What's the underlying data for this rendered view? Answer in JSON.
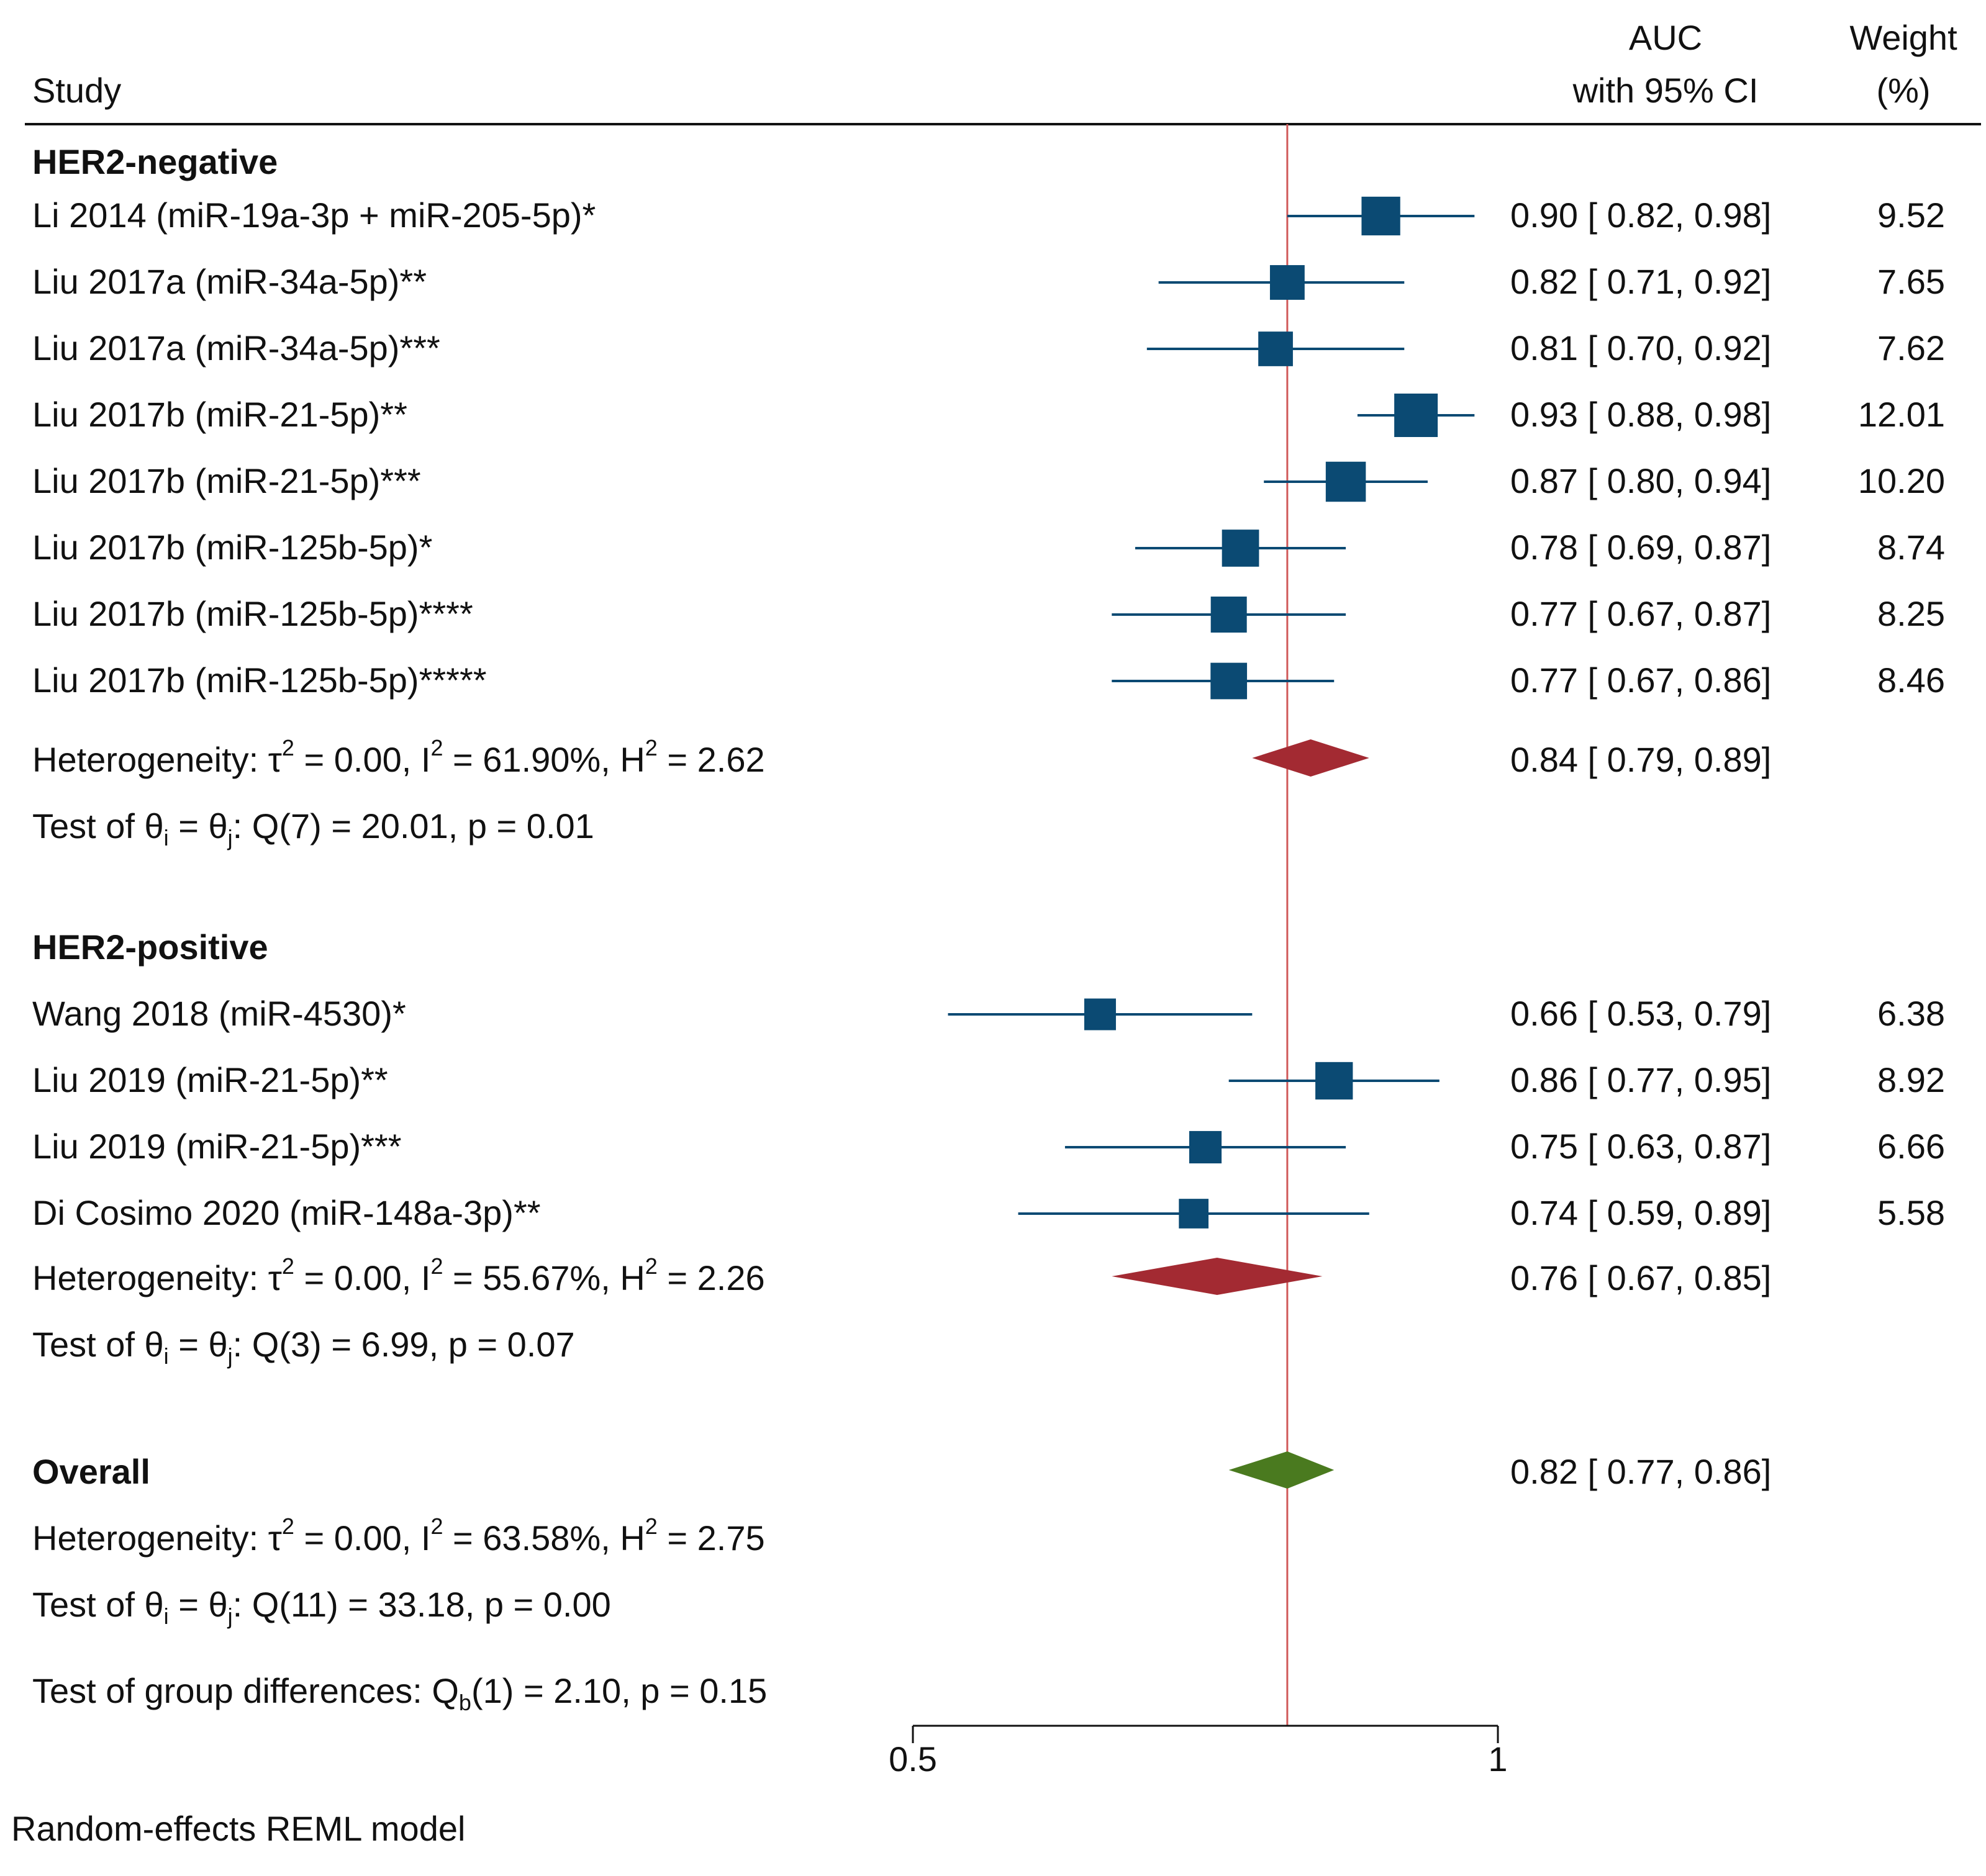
{
  "chart_data": {
    "type": "forest",
    "headers": {
      "study": "Study",
      "auc_line1": "AUC",
      "auc_line2": "with 95% CI",
      "weight_line1": "Weight",
      "weight_line2": "(%)"
    },
    "reference_line": 0.82,
    "xlim": [
      0.5,
      1.0
    ],
    "x_ticks": [
      {
        "value": 0.5,
        "label": "0.5"
      },
      {
        "value": 1.0,
        "label": "1"
      }
    ],
    "groups": [
      {
        "name": "HER2-negative",
        "studies": [
          {
            "label": "Li 2014 (miR-19a-3p + miR-205-5p)*",
            "est": 0.9,
            "lo": 0.82,
            "hi": 0.98,
            "ci_text": "0.90 [ 0.82,  0.98]",
            "weight": "9.52"
          },
          {
            "label": "Liu 2017a (miR-34a-5p)**",
            "est": 0.82,
            "lo": 0.71,
            "hi": 0.92,
            "ci_text": "0.82 [ 0.71,  0.92]",
            "weight": "7.65"
          },
          {
            "label": "Liu 2017a (miR-34a-5p)***",
            "est": 0.81,
            "lo": 0.7,
            "hi": 0.92,
            "ci_text": "0.81 [ 0.70,  0.92]",
            "weight": "7.62"
          },
          {
            "label": "Liu 2017b (miR-21-5p)**",
            "est": 0.93,
            "lo": 0.88,
            "hi": 0.98,
            "ci_text": "0.93 [ 0.88,  0.98]",
            "weight": "12.01"
          },
          {
            "label": "Liu 2017b (miR-21-5p)***",
            "est": 0.87,
            "lo": 0.8,
            "hi": 0.94,
            "ci_text": "0.87 [ 0.80,  0.94]",
            "weight": "10.20"
          },
          {
            "label": "Liu 2017b (miR-125b-5p)*",
            "est": 0.78,
            "lo": 0.69,
            "hi": 0.87,
            "ci_text": "0.78 [ 0.69,  0.87]",
            "weight": "8.74"
          },
          {
            "label": "Liu 2017b (miR-125b-5p)****",
            "est": 0.77,
            "lo": 0.67,
            "hi": 0.87,
            "ci_text": "0.77 [ 0.67,  0.87]",
            "weight": "8.25"
          },
          {
            "label": "Liu 2017b (miR-125b-5p)*****",
            "est": 0.77,
            "lo": 0.67,
            "hi": 0.86,
            "ci_text": "0.77 [ 0.67,  0.86]",
            "weight": "8.46"
          }
        ],
        "pooled": {
          "est": 0.84,
          "lo": 0.79,
          "hi": 0.89,
          "ci_text": "0.84 [ 0.79,  0.89]"
        },
        "heterogeneity": {
          "prefix": "Heterogeneity: τ",
          "tau2": "2",
          "mid1": " = 0.00, I",
          "i2": "2",
          "mid2": " = 61.90%, H",
          "h2": "2",
          "suffix": " = 2.62"
        },
        "test": {
          "prefix": "Test of θ",
          "sub_i": "i",
          "mid": " = θ",
          "sub_j": "j",
          "suffix": ": Q(7) = 20.01, p = 0.01"
        }
      },
      {
        "name": "HER2-positive",
        "studies": [
          {
            "label": "Wang 2018 (miR-4530)*",
            "est": 0.66,
            "lo": 0.53,
            "hi": 0.79,
            "ci_text": "0.66 [ 0.53,  0.79]",
            "weight": "6.38"
          },
          {
            "label": "Liu 2019 (miR-21-5p)**",
            "est": 0.86,
            "lo": 0.77,
            "hi": 0.95,
            "ci_text": "0.86 [ 0.77,  0.95]",
            "weight": "8.92"
          },
          {
            "label": "Liu 2019 (miR-21-5p)***",
            "est": 0.75,
            "lo": 0.63,
            "hi": 0.87,
            "ci_text": "0.75 [ 0.63,  0.87]",
            "weight": "6.66"
          },
          {
            "label": "Di Cosimo 2020 (miR-148a-3p)**",
            "est": 0.74,
            "lo": 0.59,
            "hi": 0.89,
            "ci_text": "0.74 [ 0.59,  0.89]",
            "weight": "5.58"
          }
        ],
        "pooled": {
          "est": 0.76,
          "lo": 0.67,
          "hi": 0.85,
          "ci_text": "0.76 [ 0.67,  0.85]"
        },
        "heterogeneity": {
          "prefix": "Heterogeneity: τ",
          "tau2": "2",
          "mid1": " = 0.00, I",
          "i2": "2",
          "mid2": " = 55.67%, H",
          "h2": "2",
          "suffix": " = 2.26"
        },
        "test": {
          "prefix": "Test of θ",
          "sub_i": "i",
          "mid": " = θ",
          "sub_j": "j",
          "suffix": ": Q(3) = 6.99, p = 0.07"
        }
      }
    ],
    "overall": {
      "label": "Overall",
      "est": 0.82,
      "lo": 0.77,
      "hi": 0.86,
      "ci_text": "0.82 [ 0.77,  0.86]",
      "heterogeneity": {
        "prefix": "Heterogeneity: τ",
        "tau2": "2",
        "mid1": " = 0.00, I",
        "i2": "2",
        "mid2": " = 63.58%, H",
        "h2": "2",
        "suffix": " = 2.75"
      },
      "test": {
        "prefix": "Test of θ",
        "sub_i": "i",
        "mid": " = θ",
        "sub_j": "j",
        "suffix": ": Q(11) = 33.18, p = 0.00"
      }
    },
    "group_diff": {
      "prefix": "Test of group differences: Q",
      "sub": "b",
      "suffix": "(1) = 2.10, p = 0.15"
    },
    "footnote": "Random-effects REML model",
    "colors": {
      "study_marker": "#0b4a73",
      "subgroup_diamond": "#a32a32",
      "overall_diamond": "#4a7a1f",
      "reference_line": "#d05a5a",
      "text": "#111111"
    }
  }
}
